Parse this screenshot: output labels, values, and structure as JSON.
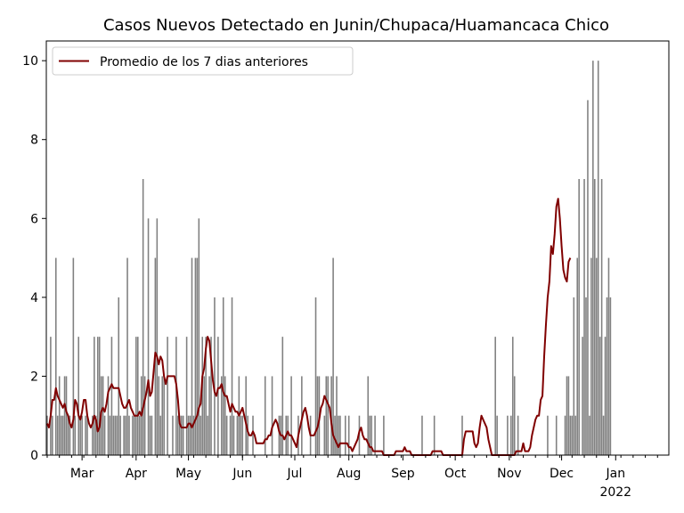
{
  "chart_data": {
    "type": "bar",
    "title": "Casos Nuevos Detectado en Junin/Chupaca/Huamancaca Chico",
    "xlabel": "",
    "ylabel": "",
    "x_start": "2021-02-09",
    "x_end": "2022-01-31",
    "ylim": [
      0,
      10.5
    ],
    "y_ticks": [
      0,
      2,
      4,
      6,
      8,
      10
    ],
    "x_ticks": [
      {
        "date": "2021-03-01",
        "label": "Mar"
      },
      {
        "date": "2021-04-01",
        "label": "Apr"
      },
      {
        "date": "2021-05-01",
        "label": "May"
      },
      {
        "date": "2021-06-01",
        "label": "Jun"
      },
      {
        "date": "2021-07-01",
        "label": "Jul"
      },
      {
        "date": "2021-08-01",
        "label": "Aug"
      },
      {
        "date": "2021-09-01",
        "label": "Sep"
      },
      {
        "date": "2021-10-01",
        "label": "Oct"
      },
      {
        "date": "2021-11-01",
        "label": "Nov"
      },
      {
        "date": "2021-12-01",
        "label": "Dec"
      },
      {
        "date": "2022-01-01",
        "label": "Jan"
      }
    ],
    "year_label": "2022",
    "grid": false,
    "legend_position": "top-left",
    "bar_color": "#808080",
    "line_color": "#800000",
    "series": [
      {
        "type": "bar",
        "start_date": "2021-02-09",
        "values": [
          1,
          0,
          3,
          1,
          0,
          5,
          1,
          2,
          1,
          1,
          2,
          2,
          1,
          1,
          0,
          5,
          1,
          0,
          3,
          1,
          1,
          0,
          1,
          1,
          0,
          0,
          1,
          3,
          1,
          3,
          3,
          2,
          2,
          1,
          0,
          2,
          1,
          3,
          1,
          1,
          1,
          4,
          1,
          0,
          1,
          1,
          5,
          1,
          0,
          1,
          1,
          3,
          3,
          1,
          2,
          7,
          2,
          0,
          6,
          1,
          1,
          0,
          5,
          6,
          2,
          1,
          2,
          2,
          0,
          3,
          0,
          0,
          1,
          0,
          3,
          1,
          1,
          1,
          1,
          0,
          3,
          1,
          1,
          5,
          1,
          5,
          5,
          6,
          1,
          3,
          2,
          3,
          1,
          2,
          3,
          0,
          4,
          0,
          3,
          0,
          2,
          4,
          2,
          1,
          0,
          1,
          4,
          1,
          0,
          1,
          2,
          1,
          1,
          0,
          2,
          1,
          0,
          0,
          1,
          0,
          0,
          0,
          0,
          0,
          0,
          2,
          0,
          0,
          0,
          2,
          0,
          0,
          0,
          1,
          1,
          3,
          0,
          1,
          1,
          0,
          2,
          0,
          0,
          0,
          1,
          0,
          2,
          0,
          0,
          0,
          0,
          1,
          0,
          0,
          4,
          2,
          2,
          0,
          0,
          1,
          2,
          2,
          0,
          2,
          5,
          1,
          2,
          1,
          1,
          0,
          0,
          1,
          0,
          1,
          0,
          0,
          0,
          0,
          0,
          1,
          0,
          0,
          0,
          0,
          2,
          1,
          1,
          0,
          1,
          0,
          0,
          0,
          0,
          1,
          0,
          0,
          0,
          0,
          0,
          0,
          0,
          0,
          0,
          0,
          0,
          0,
          0,
          0,
          0,
          0,
          0,
          0,
          0,
          0,
          0,
          1,
          0,
          0,
          0,
          0,
          0,
          0,
          1,
          0,
          0,
          0,
          0,
          0,
          0,
          0,
          0,
          0,
          0,
          0,
          0,
          0,
          0,
          0,
          1,
          0,
          0,
          0,
          0,
          0,
          0,
          0,
          0,
          0,
          0,
          0,
          0,
          0,
          0,
          0,
          0,
          0,
          0,
          3,
          1,
          0,
          0,
          0,
          0,
          0,
          1,
          0,
          1,
          3,
          2,
          0,
          1,
          0,
          0,
          0,
          0,
          0,
          0,
          0,
          0,
          0,
          0,
          0,
          0,
          0,
          0,
          0,
          0,
          1,
          0,
          0,
          0,
          0,
          1,
          0,
          0,
          0,
          0,
          1,
          2,
          2,
          1,
          1,
          4,
          1,
          5,
          7,
          0,
          3,
          7,
          4,
          9,
          1,
          5,
          10,
          7,
          5,
          10,
          3,
          7,
          1,
          3,
          4,
          5,
          4
        ]
      },
      {
        "type": "line",
        "name": "Promedio de los 7 dias anteriores",
        "start_date": "2021-02-09",
        "values": [
          0.8,
          0.7,
          1.0,
          1.4,
          1.4,
          1.7,
          1.5,
          1.4,
          1.3,
          1.2,
          1.3,
          1.1,
          1.0,
          0.8,
          0.7,
          0.9,
          1.4,
          1.3,
          1.0,
          0.9,
          1.1,
          1.4,
          1.4,
          1.0,
          0.8,
          0.7,
          0.8,
          1.0,
          0.9,
          0.6,
          0.7,
          1.1,
          1.2,
          1.1,
          1.3,
          1.6,
          1.7,
          1.8,
          1.7,
          1.7,
          1.7,
          1.7,
          1.5,
          1.3,
          1.2,
          1.2,
          1.3,
          1.4,
          1.2,
          1.1,
          1.0,
          1.0,
          1.0,
          1.1,
          1.0,
          1.2,
          1.4,
          1.6,
          1.9,
          1.5,
          1.6,
          2.1,
          2.6,
          2.5,
          2.3,
          2.5,
          2.4,
          2.0,
          1.8,
          2.0,
          2.0,
          2.0,
          2.0,
          2.0,
          1.8,
          1.4,
          0.8,
          0.7,
          0.7,
          0.7,
          0.7,
          0.8,
          0.8,
          0.7,
          0.8,
          0.9,
          1.0,
          1.2,
          1.3,
          2.0,
          2.2,
          2.7,
          3.0,
          2.9,
          2.4,
          1.9,
          1.6,
          1.5,
          1.7,
          1.7,
          1.8,
          1.6,
          1.5,
          1.5,
          1.3,
          1.1,
          1.3,
          1.2,
          1.1,
          1.1,
          1.0,
          1.1,
          1.2,
          1.0,
          0.8,
          0.6,
          0.5,
          0.5,
          0.6,
          0.5,
          0.3,
          0.3,
          0.3,
          0.3,
          0.3,
          0.4,
          0.4,
          0.5,
          0.5,
          0.7,
          0.8,
          0.9,
          0.8,
          0.6,
          0.5,
          0.5,
          0.4,
          0.5,
          0.6,
          0.5,
          0.5,
          0.4,
          0.3,
          0.2,
          0.5,
          0.7,
          0.9,
          1.1,
          1.2,
          1.0,
          0.7,
          0.5,
          0.5,
          0.5,
          0.6,
          0.7,
          0.9,
          1.2,
          1.3,
          1.5,
          1.4,
          1.3,
          1.2,
          0.8,
          0.5,
          0.4,
          0.3,
          0.2,
          0.3,
          0.3,
          0.3,
          0.3,
          0.3,
          0.2,
          0.2,
          0.1,
          0.2,
          0.3,
          0.4,
          0.6,
          0.7,
          0.5,
          0.4,
          0.4,
          0.3,
          0.2,
          0.2,
          0.1,
          0.1,
          0.1,
          0.1,
          0.1,
          0.1,
          0.0,
          0.0,
          0.0,
          0.0,
          0.0,
          0.0,
          0.0,
          0.1,
          0.1,
          0.1,
          0.1,
          0.1,
          0.2,
          0.1,
          0.1,
          0.1,
          0.0,
          0.0,
          0.0,
          0.0,
          0.0,
          0.0,
          0.0,
          0.0,
          0.0,
          0.0,
          0.0,
          0.0,
          0.1,
          0.1,
          0.1,
          0.1,
          0.1,
          0.1,
          0.0,
          0.0,
          0.0,
          0.0,
          0.0,
          0.0,
          0.0,
          0.0,
          0.0,
          0.0,
          0.0,
          0.0,
          0.4,
          0.6,
          0.6,
          0.6,
          0.6,
          0.6,
          0.3,
          0.2,
          0.3,
          0.7,
          1.0,
          0.9,
          0.8,
          0.7,
          0.4,
          0.2,
          0.0,
          0.0,
          0.0,
          0.0,
          0.0,
          0.0,
          0.0,
          0.0,
          0.0,
          0.0,
          0.0,
          0.0,
          0.0,
          0.0,
          0.1,
          0.1,
          0.1,
          0.1,
          0.3,
          0.1,
          0.1,
          0.1,
          0.2,
          0.5,
          0.7,
          0.9,
          1.0,
          1.0,
          1.4,
          1.5,
          2.5,
          3.3,
          4.0,
          4.4,
          5.3,
          5.1,
          5.6,
          6.3,
          6.5,
          6.0,
          5.3,
          4.7,
          4.5,
          4.4,
          4.9,
          5.0
        ]
      }
    ]
  }
}
